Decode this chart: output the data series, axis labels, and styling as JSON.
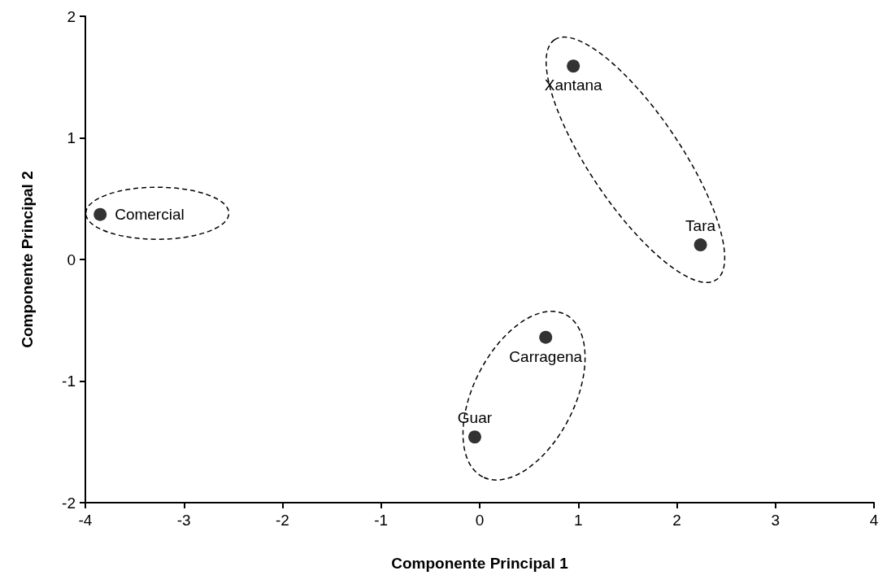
{
  "chart_data": {
    "type": "scatter",
    "xlabel": "Componente Principal 1",
    "ylabel": "Componente Principal 2",
    "x": [
      -3.85,
      0.95,
      2.24,
      0.67,
      -0.05
    ],
    "values": [
      0.37,
      1.59,
      0.12,
      -0.64,
      -1.46
    ],
    "color": "#000000",
    "marker": "circle",
    "xlim": [
      -4,
      4
    ],
    "xticks": [
      -4,
      -3,
      -2,
      -1,
      0,
      1,
      2,
      3,
      4
    ],
    "ylim": [
      -2,
      2
    ],
    "yticks": [
      -2,
      -1,
      0,
      1,
      2
    ],
    "grid": false,
    "annotations": [
      {
        "text": "Comercial",
        "x": -3.85,
        "y": 0.37
      },
      {
        "text": "Xantana",
        "x": 0.95,
        "y": 1.59
      },
      {
        "text": "Tara",
        "x": 2.24,
        "y": 0.12
      },
      {
        "text": "Carragena",
        "x": 0.67,
        "y": -0.64
      },
      {
        "text": "Guar",
        "x": -0.05,
        "y": -1.46
      }
    ]
  }
}
